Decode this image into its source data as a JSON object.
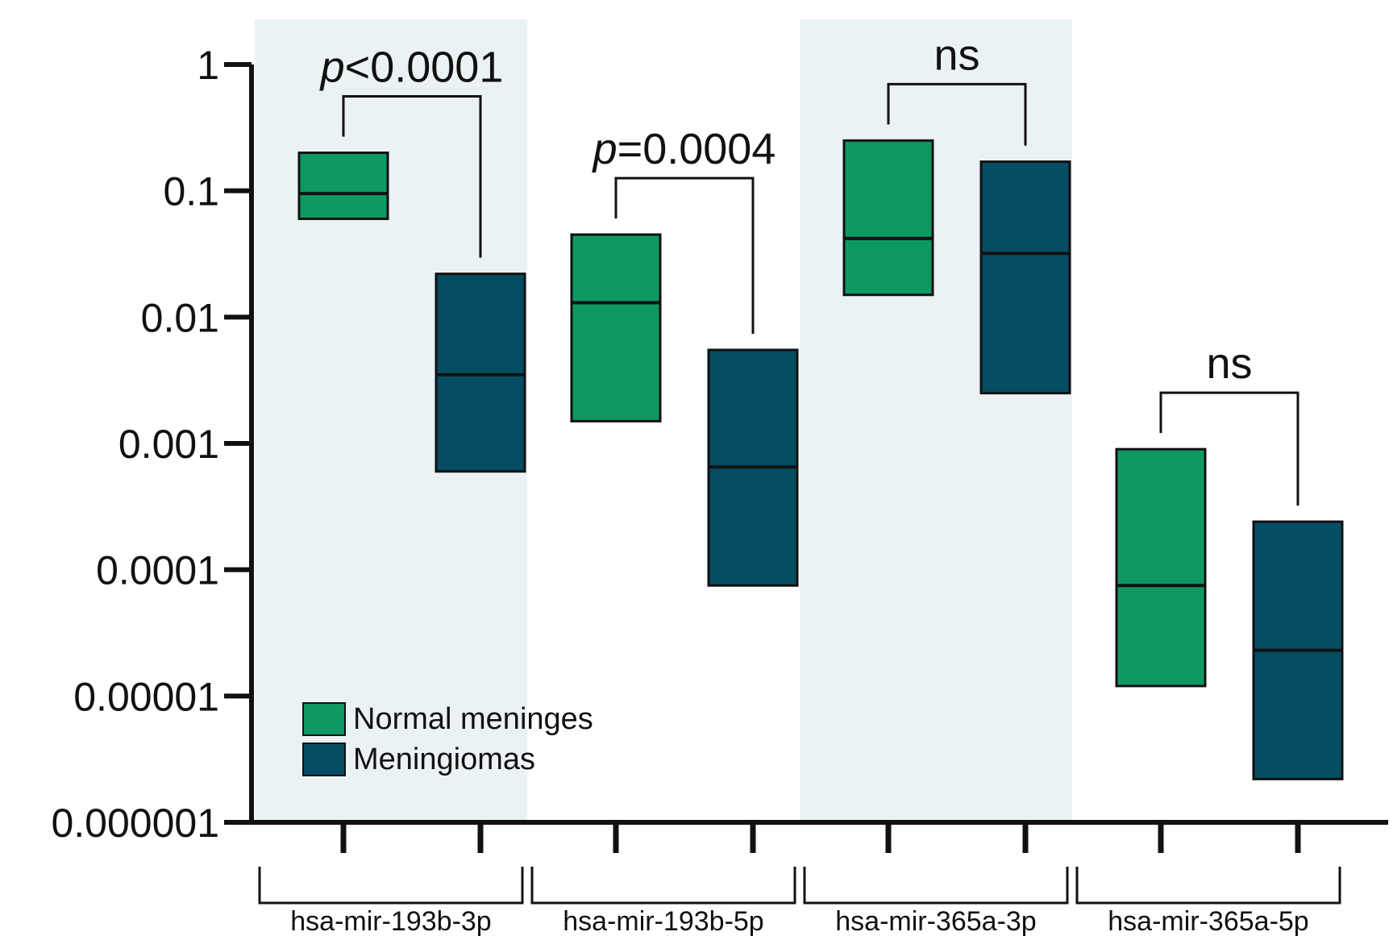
{
  "chart_data": {
    "type": "box",
    "yscale": "log",
    "ylim": [
      1e-06,
      1
    ],
    "ytick_labels": [
      "1",
      "0.1",
      "0.01",
      "0.001",
      "0.0001",
      "0.00001",
      "0.000001"
    ],
    "ytick_values": [
      1,
      0.1,
      0.01,
      0.001,
      0.0001,
      1e-05,
      1e-06
    ],
    "groups": [
      "hsa-mir-193b-3p",
      "hsa-mir-193b-5p",
      "hsa-mir-365a-3p",
      "hsa-mir-365a-5p"
    ],
    "series": [
      {
        "name": "Normal meninges",
        "color": "#0e9963",
        "boxes": [
          {
            "low": 0.06,
            "median": 0.095,
            "high": 0.2
          },
          {
            "low": 0.0015,
            "median": 0.013,
            "high": 0.045
          },
          {
            "low": 0.015,
            "median": 0.042,
            "high": 0.25
          },
          {
            "low": 1.2e-05,
            "median": 7.5e-05,
            "high": 0.0009
          }
        ]
      },
      {
        "name": "Meningiomas",
        "color": "#054d63",
        "boxes": [
          {
            "low": 0.0006,
            "median": 0.0035,
            "high": 0.022
          },
          {
            "low": 7.5e-05,
            "median": 0.00065,
            "high": 0.0055
          },
          {
            "low": 0.0025,
            "median": 0.032,
            "high": 0.17
          },
          {
            "low": 2.2e-06,
            "median": 2.3e-05,
            "high": 0.00024
          }
        ]
      }
    ],
    "annotations": [
      {
        "italic_prefix": "p",
        "text": "<0.0001"
      },
      {
        "italic_prefix": "p",
        "text": "=0.0004"
      },
      {
        "italic_prefix": "",
        "text": "ns"
      },
      {
        "italic_prefix": "",
        "text": "ns"
      }
    ],
    "legend": {
      "position": "bottom-left",
      "entries": [
        "Normal meninges",
        "Meningiomas"
      ]
    },
    "shaded_groups": [
      0,
      2
    ],
    "shade_color": "#ebf2f4",
    "xlabel": "",
    "ylabel": ""
  }
}
